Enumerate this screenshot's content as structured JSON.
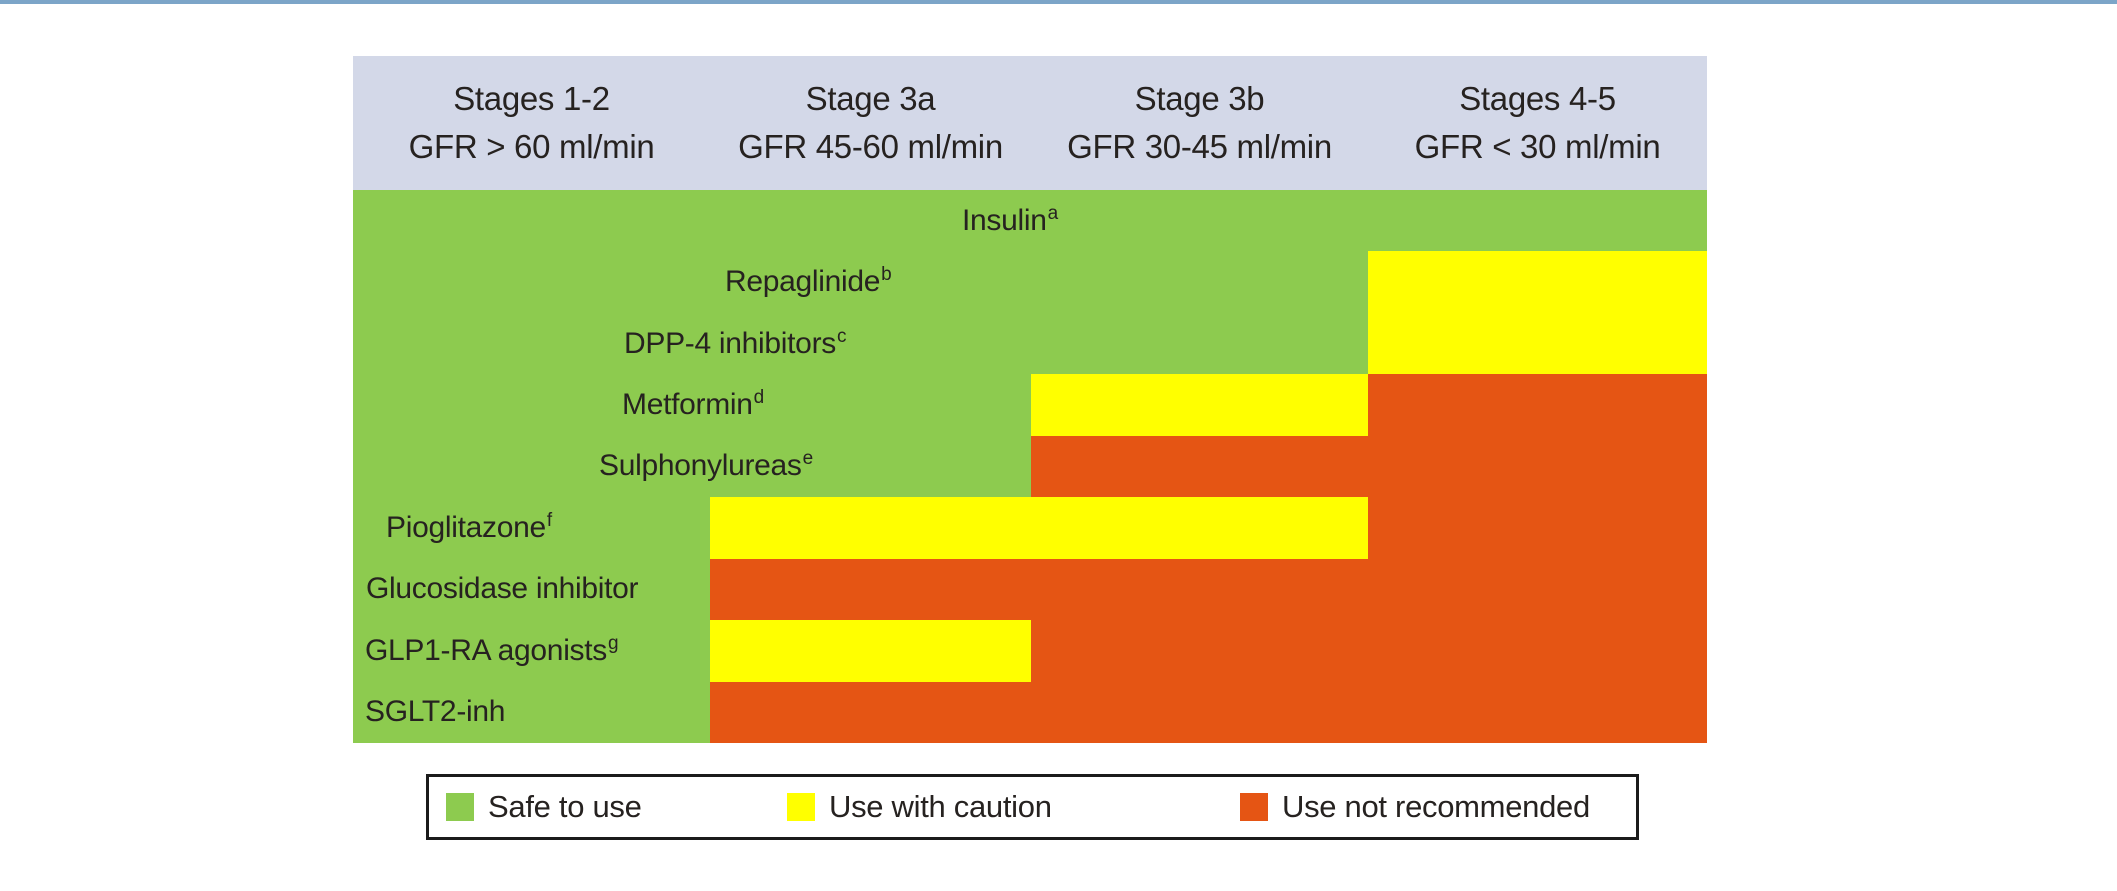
{
  "page": {
    "background": "#ffffff",
    "top_border_color": "#7ca5c8"
  },
  "header": {
    "background": "#d3d8e8",
    "columns": [
      {
        "line1": "Stages 1-2",
        "line2": "GFR > 60 ml/min"
      },
      {
        "line1": "Stage 3a",
        "line2": "GFR 45-60 ml/min"
      },
      {
        "line1": "Stage 3b",
        "line2": "GFR 30-45 ml/min"
      },
      {
        "line1": "Stages 4-5",
        "line2": "GFR < 30 ml/min"
      }
    ]
  },
  "chart_data": {
    "type": "heatmap",
    "title": "",
    "columns": [
      "Stages 1-2 GFR > 60 ml/min",
      "Stage 3a GFR 45-60 ml/min",
      "Stage 3b GFR 30-45 ml/min",
      "Stages 4-5 GFR < 30 ml/min"
    ],
    "status_colors": {
      "safe": "#8dcb4f",
      "caution": "#ffff00",
      "not_recommended": "#e55514"
    },
    "rows": [
      {
        "drug": "Insulin",
        "footnote": "a",
        "statuses": [
          "safe",
          "safe",
          "safe",
          "safe"
        ]
      },
      {
        "drug": "Repaglinide",
        "footnote": "b",
        "statuses": [
          "safe",
          "safe",
          "safe",
          "caution"
        ]
      },
      {
        "drug": "DPP-4 inhibitors",
        "footnote": "c",
        "statuses": [
          "safe",
          "safe",
          "safe",
          "caution"
        ]
      },
      {
        "drug": "Metformin",
        "footnote": "d",
        "statuses": [
          "safe",
          "safe",
          "caution",
          "not_recommended"
        ]
      },
      {
        "drug": "Sulphonylureas",
        "footnote": "e",
        "statuses": [
          "safe",
          "safe",
          "not_recommended",
          "not_recommended"
        ]
      },
      {
        "drug": "Pioglitazone",
        "footnote": "f",
        "statuses": [
          "safe",
          "caution",
          "caution",
          "not_recommended"
        ]
      },
      {
        "drug": "Glucosidase inhibitor",
        "footnote": "",
        "statuses": [
          "safe",
          "not_recommended",
          "not_recommended",
          "not_recommended"
        ]
      },
      {
        "drug": "GLP1-RA agonists",
        "footnote": "g",
        "statuses": [
          "safe",
          "caution",
          "not_recommended",
          "not_recommended"
        ]
      },
      {
        "drug": "SGLT2-inh",
        "footnote": "",
        "statuses": [
          "safe",
          "not_recommended",
          "not_recommended",
          "not_recommended"
        ]
      }
    ],
    "legend_position": "bottom"
  },
  "legend": {
    "items": [
      {
        "label": "Safe to use",
        "status": "safe"
      },
      {
        "label": "Use with caution",
        "status": "caution"
      },
      {
        "label": "Use not recommended",
        "status": "not_recommended"
      }
    ]
  }
}
